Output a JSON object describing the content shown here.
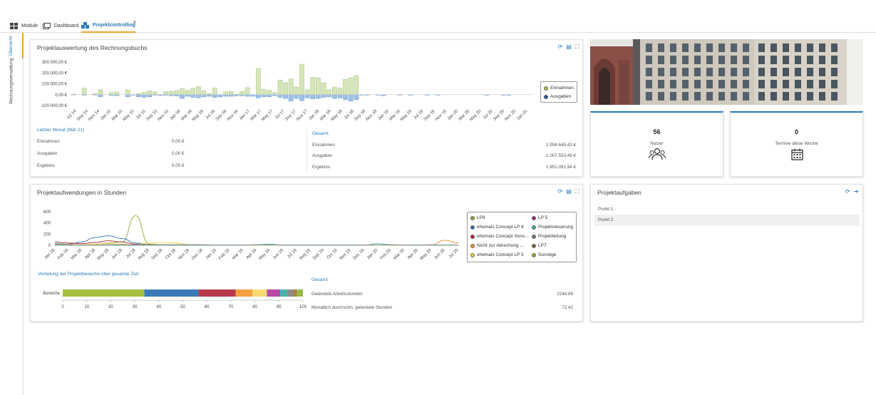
{
  "tabs": [
    {
      "label": "Module",
      "icon": "grid-icon"
    },
    {
      "label": "Dashboard",
      "icon": "dashboard-icon"
    },
    {
      "label": "Projektcontrolling",
      "icon": "cubes-icon",
      "active": true
    }
  ],
  "close_label": "×",
  "sidebar": [
    {
      "label": "Übersicht",
      "active": true
    },
    {
      "label": "Rechnungsverwaltung",
      "active": false
    }
  ],
  "billing": {
    "title": "Projektauswertung des Rechnungsbuchs",
    "legend": [
      {
        "label": "Einnahmen",
        "color": "#a8c060"
      },
      {
        "label": "Ausgaben",
        "color": "#1a4f8a"
      }
    ],
    "last_month": {
      "heading": "Letzter Monat (Mär 21)",
      "rows": [
        {
          "label": "Einnahmen",
          "value": "0,00 €"
        },
        {
          "label": "Ausgaben",
          "value": "0,00 €"
        },
        {
          "label": "Ergebnis",
          "value": "0,00 €"
        }
      ]
    },
    "total": {
      "heading": "Gesamt",
      "rows": [
        {
          "label": "Einnahmen",
          "value": "2.958.645,43 €"
        },
        {
          "label": "Ausgaben",
          "value": "-1.007.553,49 €"
        },
        {
          "label": "Ergebnis",
          "value": "1.951.091,94 €"
        }
      ]
    }
  },
  "stats": [
    {
      "value": "56",
      "label": "Nutzer",
      "icon": "users-icon"
    },
    {
      "value": "0",
      "label": "Termine diese Woche",
      "icon": "calendar-icon"
    }
  ],
  "hours": {
    "title": "Projektaufwendungen in Stunden",
    "legend": [
      {
        "label": "LP8",
        "color": "#8fa832"
      },
      {
        "label": "LP 5",
        "color": "#a0207a"
      },
      {
        "label": "ehemals Concept LP 8",
        "color": "#2a6fb0"
      },
      {
        "label": "Projektsteuerung",
        "color": "#3aa89a"
      },
      {
        "label": "ehemals Concept Sons...",
        "color": "#a02030"
      },
      {
        "label": "Projektleitung",
        "color": "#777777"
      },
      {
        "label": "Nicht zur Abrechung ...",
        "color": "#f09030"
      },
      {
        "label": "LP7",
        "color": "#8a5a20"
      },
      {
        "label": "ehemals Concept LP 5",
        "color": "#f5d040"
      },
      {
        "label": "Sonstige",
        "color": "#8fa832"
      }
    ],
    "dist_heading": "Verteilung der Projektbereiche über gesamte Zeit",
    "bar_label": "Bereiche",
    "total": {
      "heading": "Gesamt",
      "rows": [
        {
          "label": "Geleistete Arbeitsstunden",
          "value": "2244.66"
        },
        {
          "label": "Monatlich durchschn. geleistete Stunden",
          "value": "72.41"
        }
      ]
    }
  },
  "tasks": {
    "title": "Projektaufgaben",
    "items": [
      "Punkt 1",
      "Punkt 2"
    ]
  },
  "chart_data": [
    {
      "type": "bar",
      "title": "Projektauswertung des Rechnungsbuchs",
      "ylim": [
        -100000,
        300000
      ],
      "yticks": [
        "300.000,00 €",
        "200.000,00 €",
        "100.000,00 €",
        "0,00 €",
        "-100.000,00 €"
      ],
      "xtick_labels": [
        "Jul 14",
        "Sep 14",
        "Nov 14",
        "Jan 15",
        "Mar 15",
        "May 15",
        "Jul 15",
        "Sep 15",
        "Nov 15",
        "Jan 16",
        "Mar 16",
        "May 16",
        "Jul 16",
        "Sep 16",
        "Nov 16",
        "Jan 17",
        "Mar 17",
        "May 17",
        "Jul 17",
        "Sep 17",
        "Nov 17",
        "Jan 18",
        "Mar 18",
        "May 18",
        "Jul 18",
        "Sep 18",
        "Nov 18",
        "Jan 19",
        "Mar 19",
        "May 19",
        "Jul 19",
        "Sep 19",
        "Nov 19",
        "Jan 20",
        "Mar 20",
        "May 20",
        "Jul 20",
        "Sep 20",
        "Nov 20",
        "Jan 21"
      ],
      "series": [
        {
          "name": "Einnahmen",
          "values": [
            5000,
            0,
            60000,
            0,
            10000,
            45000,
            0,
            20000,
            25000,
            0,
            45000,
            0,
            10000,
            20000,
            35000,
            25000,
            0,
            30000,
            30000,
            40000,
            55000,
            40000,
            60000,
            75000,
            35000,
            10000,
            60000,
            0,
            25000,
            30000,
            5000,
            30000,
            65000,
            0,
            240000,
            50000,
            40000,
            20000,
            135000,
            110000,
            145000,
            70000,
            280000,
            45000,
            160000,
            155000,
            110000,
            45000,
            70000,
            60000,
            140000,
            155000,
            175000,
            0,
            0,
            0,
            0,
            0,
            0,
            0,
            0,
            0,
            0,
            0,
            0,
            0,
            0,
            0,
            0,
            0,
            0,
            0,
            0,
            0,
            0,
            0,
            0,
            0,
            0,
            0,
            0,
            0,
            0,
            0,
            0
          ]
        },
        {
          "name": "Ausgaben",
          "values": [
            -2000,
            0,
            -5000,
            0,
            -3000,
            -20000,
            0,
            -8000,
            -10000,
            0,
            -20000,
            -5000,
            -20000,
            -25000,
            -20000,
            -5000,
            -8000,
            -5000,
            -10000,
            -12000,
            -35000,
            -15000,
            -25000,
            -30000,
            -20000,
            -15000,
            -25000,
            -20000,
            -15000,
            -15000,
            -10000,
            -10000,
            -15000,
            -15000,
            -30000,
            -20000,
            -20000,
            -10000,
            -25000,
            -35000,
            -60000,
            -35000,
            -55000,
            -30000,
            -40000,
            -35000,
            -25000,
            -20000,
            -35000,
            -30000,
            -45000,
            -60000,
            -45000,
            -5000,
            -5000,
            0,
            -5000,
            -10000,
            0,
            0,
            -5000,
            0,
            -5000,
            0,
            0,
            -5000,
            0,
            -5000,
            0,
            0,
            0,
            0,
            0,
            0,
            0,
            0,
            -5000,
            0,
            0,
            -5000,
            -5000,
            0,
            0,
            0,
            0
          ]
        }
      ]
    },
    {
      "type": "line",
      "title": "Projektaufwendungen in Stunden",
      "ylim": [
        0,
        600
      ],
      "yticks": [
        600,
        400,
        200,
        0
      ],
      "x": [
        "Jan 18",
        "Feb 18",
        "Mar 18",
        "Apr 18",
        "May 18",
        "Jun 18",
        "Jul 18",
        "Aug 18",
        "Sep 18",
        "Oct 18",
        "Nov 18",
        "Dec 18",
        "Jan 19",
        "Feb 19",
        "Mar 19",
        "Apr 19",
        "May 19",
        "Jun 19",
        "Jul 19",
        "Aug 19",
        "Sep 19",
        "Oct 19",
        "Nov 19",
        "Dec 19",
        "Jan 20",
        "Feb 20",
        "Mar 20",
        "Apr 20",
        "May 20",
        "Jun 20",
        "Jul 20"
      ],
      "series": [
        {
          "name": "LP8",
          "values": [
            20,
            10,
            5,
            20,
            40,
            60,
            530,
            20,
            10,
            5,
            0,
            0,
            0,
            0,
            0,
            0,
            0,
            0,
            0,
            0,
            0,
            0,
            0,
            0,
            0,
            0,
            0,
            0,
            0,
            0,
            0
          ]
        },
        {
          "name": "ehemals Concept LP 8",
          "values": [
            30,
            20,
            60,
            140,
            170,
            120,
            40,
            10,
            0,
            0,
            0,
            0,
            0,
            0,
            0,
            0,
            0,
            0,
            0,
            0,
            0,
            0,
            0,
            0,
            0,
            0,
            0,
            0,
            0,
            0,
            0
          ]
        },
        {
          "name": "ehemals Concept Sons...",
          "values": [
            60,
            40,
            30,
            50,
            80,
            60,
            20,
            10,
            0,
            0,
            0,
            0,
            0,
            0,
            0,
            0,
            0,
            0,
            0,
            0,
            0,
            0,
            0,
            0,
            0,
            0,
            0,
            0,
            0,
            0,
            0
          ]
        },
        {
          "name": "Nicht zur Abrechung ...",
          "values": [
            0,
            0,
            0,
            0,
            0,
            0,
            0,
            0,
            0,
            0,
            0,
            0,
            0,
            0,
            0,
            0,
            0,
            0,
            0,
            0,
            0,
            0,
            0,
            0,
            0,
            0,
            0,
            0,
            10,
            90,
            40
          ]
        },
        {
          "name": "ehemals Concept LP 5",
          "values": [
            10,
            15,
            10,
            20,
            30,
            20,
            10,
            40,
            50,
            40,
            10,
            0,
            0,
            0,
            0,
            0,
            0,
            0,
            0,
            0,
            0,
            0,
            0,
            0,
            0,
            0,
            0,
            0,
            0,
            0,
            0
          ]
        },
        {
          "name": "Projektsteuerung",
          "values": [
            0,
            0,
            0,
            0,
            0,
            0,
            0,
            0,
            0,
            0,
            0,
            0,
            0,
            0,
            0,
            10,
            20,
            0,
            0,
            0,
            0,
            0,
            0,
            0,
            30,
            10,
            0,
            0,
            0,
            0,
            0
          ]
        },
        {
          "name": "Projektleitung",
          "values": [
            5,
            5,
            5,
            5,
            10,
            10,
            10,
            10,
            10,
            10,
            10,
            10,
            5,
            5,
            5,
            5,
            5,
            5,
            5,
            5,
            5,
            5,
            5,
            5,
            5,
            5,
            5,
            5,
            5,
            5,
            5
          ]
        }
      ]
    },
    {
      "type": "bar",
      "title": "Verteilung der Projektbereiche über gesamte Zeit",
      "orientation": "horizontal",
      "categories": [
        "Bereiche"
      ],
      "xlim": [
        0,
        100
      ],
      "xticks": [
        0,
        10,
        20,
        30,
        40,
        50,
        60,
        70,
        80,
        90,
        100
      ],
      "series": [
        {
          "name": "LP8",
          "values": [
            34
          ],
          "color": "#a8c040"
        },
        {
          "name": "ehemals Concept LP 8",
          "values": [
            22.5
          ],
          "color": "#3a7ab8"
        },
        {
          "name": "ehemals Concept Sons...",
          "values": [
            15.5
          ],
          "color": "#b83a4a"
        },
        {
          "name": "Nicht zur Abrechung ...",
          "values": [
            7
          ],
          "color": "#f5a040"
        },
        {
          "name": "ehemals Concept LP 5",
          "values": [
            6
          ],
          "color": "#f8d870"
        },
        {
          "name": "LP 5",
          "values": [
            5.5
          ],
          "color": "#b848a8"
        },
        {
          "name": "Projektsteuerung",
          "values": [
            3
          ],
          "color": "#48b0a8"
        },
        {
          "name": "Projektleitung",
          "values": [
            2.5
          ],
          "color": "#8a8a8a"
        },
        {
          "name": "LP7",
          "values": [
            1.5
          ],
          "color": "#b0803a"
        },
        {
          "name": "Sonstige",
          "values": [
            2.5
          ],
          "color": "#9ab84a"
        }
      ]
    }
  ]
}
